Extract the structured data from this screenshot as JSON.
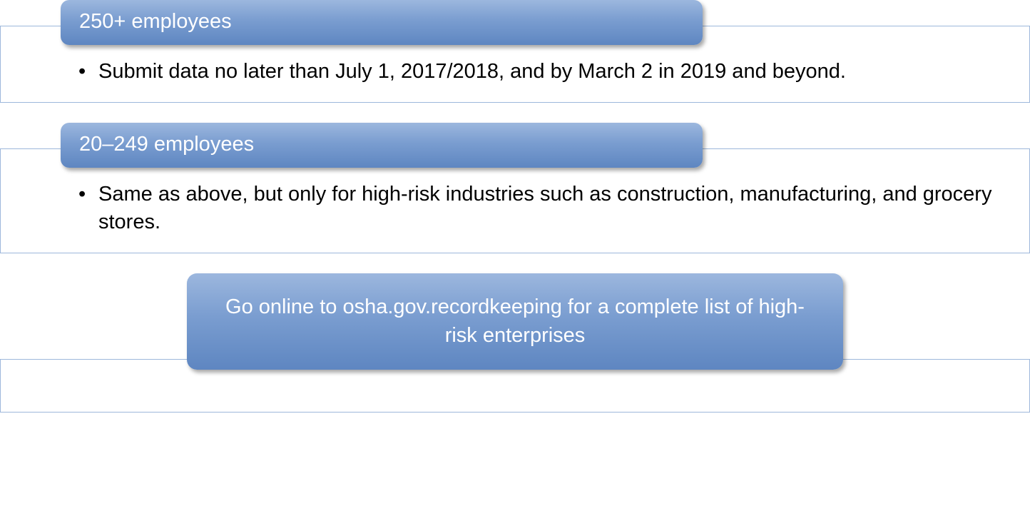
{
  "type": "infographic",
  "background_color": "#ffffff",
  "box_border_color": "#9db7db",
  "pill_gradient_top": "#9cb7de",
  "pill_gradient_mid": "#7a9dd0",
  "pill_gradient_bottom": "#5e86c1",
  "pill_shadow": "rgba(0,0,0,0.35)",
  "text_color_body": "#000000",
  "text_color_pill": "#ffffff",
  "header_fontsize": 29,
  "body_fontsize": 29,
  "border_radius": 12,
  "sections": [
    {
      "title": "250+ employees",
      "bullet": "Submit data no later than July 1, 2017/2018, and by March 2 in 2019 and beyond."
    },
    {
      "title": "20–249 employees",
      "bullet": "Same as above, but only for high-risk industries such as construction, manufacturing, and grocery stores."
    }
  ],
  "footer": {
    "text": "Go online to osha.gov.recordkeeping for a complete list of high-risk enterprises"
  }
}
